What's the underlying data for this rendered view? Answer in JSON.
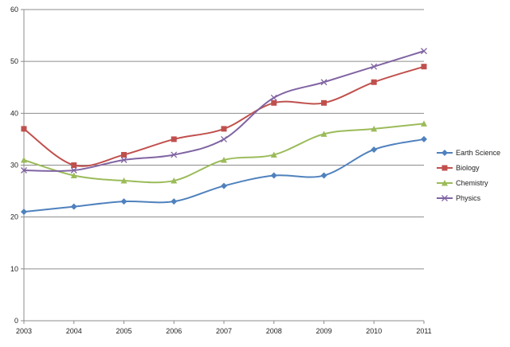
{
  "chart_data": {
    "type": "line",
    "title": "",
    "xlabel": "",
    "ylabel": "",
    "x": [
      "2003",
      "2004",
      "2005",
      "2006",
      "2007",
      "2008",
      "2009",
      "2010",
      "2011"
    ],
    "ylim": [
      0,
      60
    ],
    "yticks": [
      "0",
      "10",
      "20",
      "30",
      "40",
      "50",
      "60"
    ],
    "grid": true,
    "legend_position": "right",
    "smooth": true,
    "series": [
      {
        "name": "Earth Science",
        "values": [
          21,
          22,
          23,
          23,
          26,
          28,
          28,
          33,
          35
        ],
        "color": "#4f81bd",
        "marker": "diamond"
      },
      {
        "name": "Biology",
        "values": [
          37,
          30,
          32,
          35,
          37,
          42,
          42,
          46,
          49
        ],
        "color": "#c0504d",
        "marker": "square"
      },
      {
        "name": "Chemistry",
        "values": [
          31,
          28,
          27,
          27,
          31,
          32,
          36,
          37,
          38
        ],
        "color": "#9bbb59",
        "marker": "triangle"
      },
      {
        "name": "Physics",
        "values": [
          29,
          29,
          31,
          32,
          35,
          43,
          46,
          49,
          52
        ],
        "color": "#8064a2",
        "marker": "x"
      }
    ]
  }
}
